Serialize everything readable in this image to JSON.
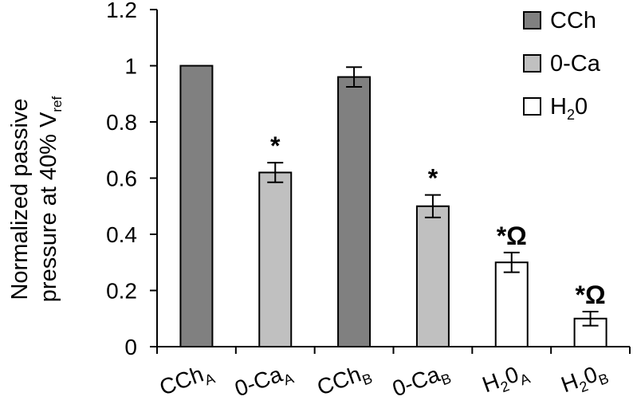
{
  "chart_data": {
    "type": "bar",
    "ylabel_line1": "Normalized passive",
    "ylabel_line2_main": "pressure at 40% V",
    "ylabel_line2_sub": "ref",
    "ylim": [
      0,
      1.2
    ],
    "yticks": [
      {
        "label": "0",
        "value": 0
      },
      {
        "label": "0.2",
        "value": 0.2
      },
      {
        "label": "0.4",
        "value": 0.4
      },
      {
        "label": "0.6",
        "value": 0.6
      },
      {
        "label": "0.8",
        "value": 0.8
      },
      {
        "label": "1",
        "value": 1.0
      },
      {
        "label": "1.2",
        "value": 1.2
      }
    ],
    "colors": {
      "CCh": "#808080",
      "0-Ca": "#c0c0c0",
      "H2O": "#ffffff",
      "outline": "#000000"
    },
    "categories": [
      {
        "main": "CCh",
        "sub": "A",
        "group": "CCh",
        "value": 1.0,
        "error": 0,
        "annotation": ""
      },
      {
        "main": "0-Ca",
        "sub": "A",
        "group": "0-Ca",
        "value": 0.62,
        "error": 0.035,
        "annotation": "*"
      },
      {
        "main": "CCh",
        "sub": "B",
        "group": "CCh",
        "value": 0.96,
        "error": 0.035,
        "annotation": ""
      },
      {
        "main": "0-Ca",
        "sub": "B",
        "group": "0-Ca",
        "value": 0.5,
        "error": 0.04,
        "annotation": "*"
      },
      {
        "main": "H",
        "main_sub": "2",
        "main_after": "0",
        "sub": "A",
        "group": "H2O",
        "value": 0.3,
        "error": 0.035,
        "annotation": "*Ω"
      },
      {
        "main": "H",
        "main_sub": "2",
        "main_after": "0",
        "sub": "B",
        "group": "H2O",
        "value": 0.1,
        "error": 0.025,
        "annotation": "*Ω"
      }
    ],
    "legend": [
      {
        "group": "CCh",
        "label": "CCh"
      },
      {
        "group": "0-Ca",
        "label": "0-Ca"
      },
      {
        "group": "H2O",
        "label_main": "H",
        "label_sub": "2",
        "label_after": "0"
      }
    ]
  }
}
